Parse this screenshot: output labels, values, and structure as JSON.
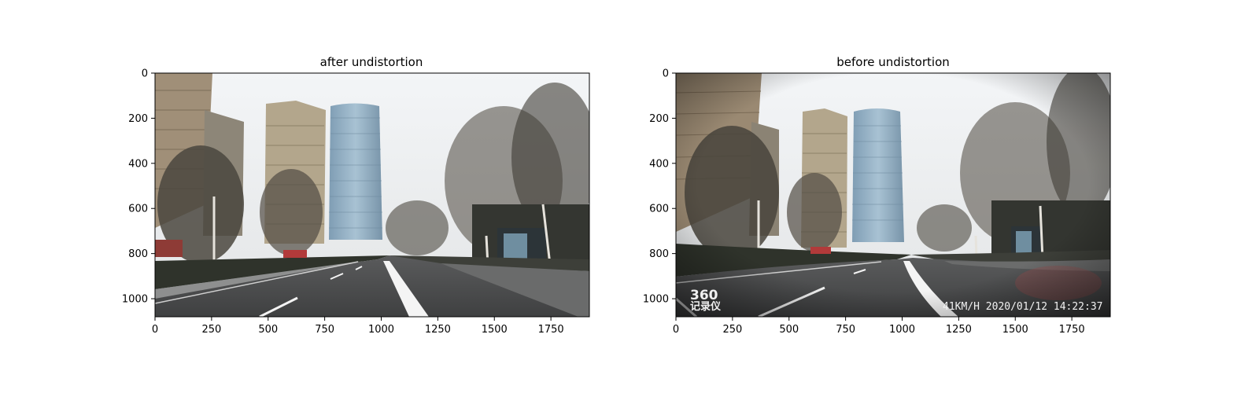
{
  "panels": [
    {
      "id": "left",
      "title": "after undistortion",
      "x_ticks": [
        0,
        250,
        500,
        750,
        1000,
        1250,
        1500,
        1750
      ],
      "y_ticks": [
        0,
        200,
        400,
        600,
        800,
        1000
      ],
      "x_range": [
        0,
        1920
      ],
      "y_range": [
        0,
        1080
      ]
    },
    {
      "id": "right",
      "title": "before undistortion",
      "x_ticks": [
        0,
        250,
        500,
        750,
        1000,
        1250,
        1500,
        1750
      ],
      "y_ticks": [
        0,
        200,
        400,
        600,
        800,
        1000
      ],
      "x_range": [
        0,
        1920
      ],
      "y_range": [
        0,
        1080
      ],
      "overlay": {
        "logo_number": "360",
        "logo_text": "记录仪",
        "speed_time": "41KM/H 2020/01/12 14:22:37"
      }
    }
  ],
  "colors": {
    "sky": "#eef0f2",
    "road": "#474849",
    "tower_glass": "#8fb0c7",
    "buildings": "#a59a86",
    "trees": "#3d3a33",
    "lane_marking": "#f4f4f4"
  }
}
